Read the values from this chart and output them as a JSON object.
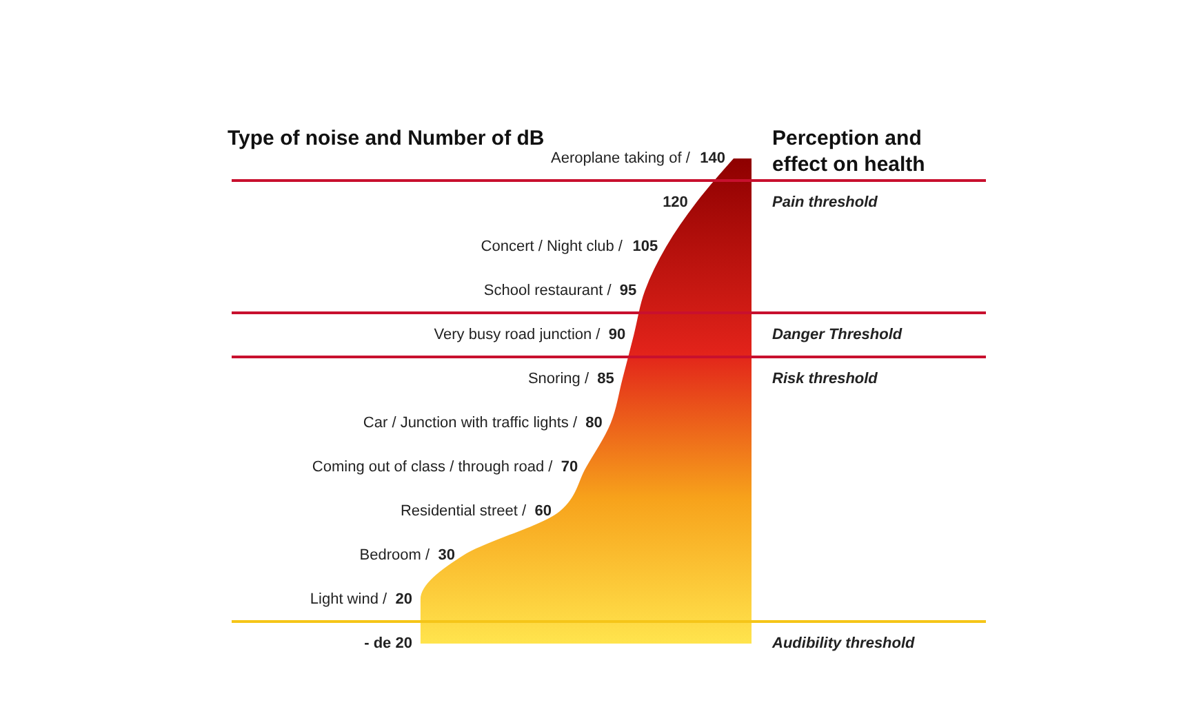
{
  "chart_data": {
    "type": "other",
    "title": "Type of noise and Number of dB",
    "y2label": "Perception and\neffect on health",
    "categories": [
      "Aeroplane taking of /",
      null,
      "Concert / Night club /",
      "School restaurant /",
      "Very busy road junction /",
      "Snoring /",
      "Car / Junction with traffic lights /",
      "Coming out of class / through road /",
      "Residential street /",
      "Bedroom /",
      "Light wind /",
      null
    ],
    "values": [
      140,
      120,
      105,
      95,
      90,
      85,
      80,
      70,
      60,
      30,
      20,
      20
    ],
    "value_labels": [
      "140",
      "120",
      "105",
      "95",
      "90",
      "85",
      "80",
      "70",
      "60",
      "30",
      "20",
      "- de 20"
    ],
    "y2_categories": [
      null,
      "Pain threshold",
      null,
      null,
      "Danger Threshold",
      "Risk threshold",
      null,
      null,
      null,
      null,
      null,
      "Audibility threshold"
    ],
    "colors": [
      null,
      "#c8102e",
      null,
      null,
      "#c8102e",
      "#c8102e",
      null,
      null,
      null,
      null,
      null,
      "#f5c518"
    ]
  }
}
